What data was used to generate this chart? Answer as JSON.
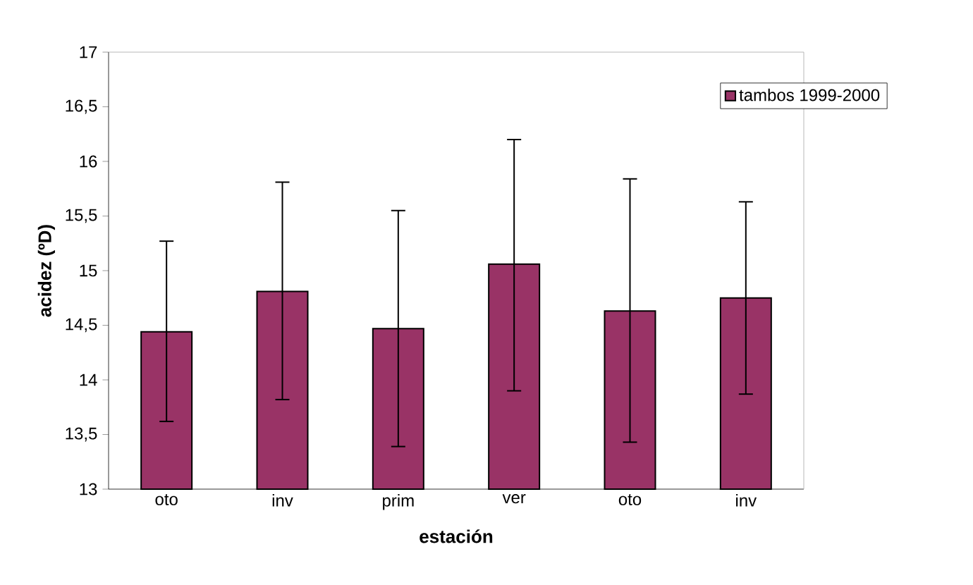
{
  "chart_data": {
    "type": "bar",
    "xlabel": "estación",
    "ylabel": "acidez (ºD)",
    "categories": [
      "oto",
      "inv",
      "prim",
      "ver",
      "oto",
      "inv"
    ],
    "series": [
      {
        "name": "tambos 1999-2000",
        "color": "#993366",
        "values": [
          14.44,
          14.81,
          14.47,
          15.06,
          14.63,
          14.75
        ],
        "errors": [
          [
            13.62,
            15.27
          ],
          [
            13.82,
            15.81
          ],
          [
            13.39,
            15.55
          ],
          [
            13.9,
            16.2
          ],
          [
            13.43,
            15.84
          ],
          [
            13.87,
            15.63
          ]
        ]
      }
    ],
    "ylim": [
      13,
      17
    ],
    "yticks": [
      13,
      {
        "value": 13.5,
        "label": "13,5"
      },
      14,
      {
        "value": 14.5,
        "label": "14,5"
      },
      15,
      {
        "value": 15.5,
        "label": "15,5"
      },
      16,
      {
        "value": 16.5,
        "label": "16,5"
      },
      17
    ],
    "grid": false,
    "legend": "top right"
  }
}
